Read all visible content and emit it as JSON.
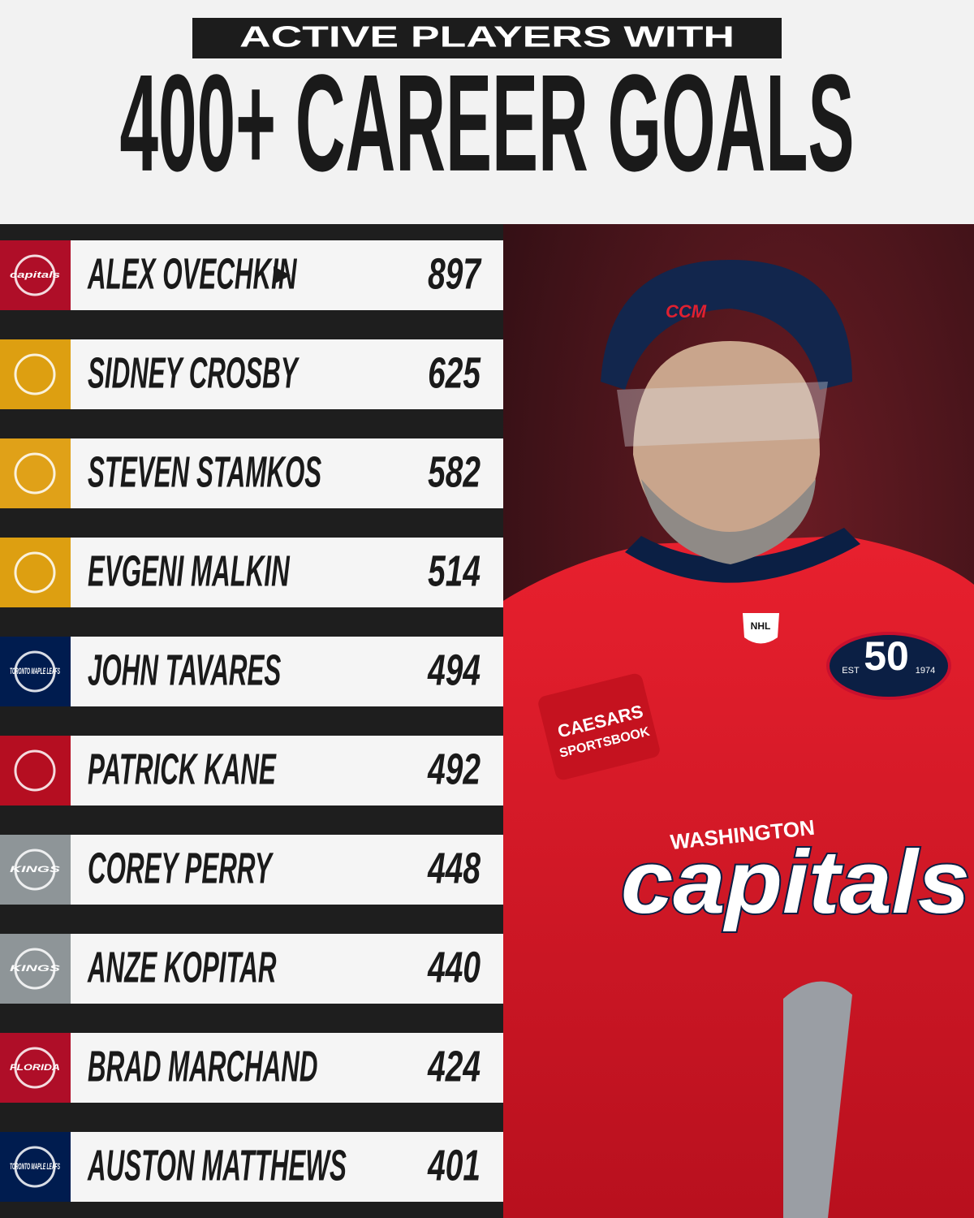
{
  "header": {
    "kicker": "ACTIVE PLAYERS WITH",
    "title": "400+ CAREER GOALS"
  },
  "rows": [
    {
      "team_color": "#c8102e",
      "logo_text": "capitals",
      "name": "ALEX OVECHKIN",
      "goals": 897
    },
    {
      "team_color": "#fcb514",
      "name": "SIDNEY CROSBY",
      "goals": 625
    },
    {
      "team_color": "#ffb81c",
      "name": "STEVEN STAMKOS",
      "goals": 582
    },
    {
      "team_color": "#fcb514",
      "name": "EVGENI MALKIN",
      "goals": 514
    },
    {
      "team_color": "#00205b",
      "logo_text": "TORONTO MAPLE LEAFS",
      "name": "JOHN TAVARES",
      "goals": 494
    },
    {
      "team_color": "#ce1126",
      "name": "PATRICK KANE",
      "goals": 492
    },
    {
      "team_color": "#a2aaad",
      "logo_text": "KINGS",
      "name": "COREY PERRY",
      "goals": 448
    },
    {
      "team_color": "#a2aaad",
      "logo_text": "KINGS",
      "name": "ANZE KOPITAR",
      "goals": 440
    },
    {
      "team_color": "#c8102e",
      "logo_text": "FLORIDA",
      "name": "BRAD MARCHAND",
      "goals": 424
    },
    {
      "team_color": "#00205b",
      "logo_text": "TORONTO MAPLE LEAFS",
      "name": "AUSTON MATTHEWS",
      "goals": 401
    }
  ],
  "photo": {
    "helmet_text": "CCM",
    "patch_number": "50",
    "patch_est": "EST",
    "patch_year": "1974",
    "sponsor_1": "CAESARS",
    "sponsor_2": "SPORTSBOOK",
    "crest_top": "WASHINGTON",
    "crest_main": "capitals",
    "shield": "NHL"
  }
}
